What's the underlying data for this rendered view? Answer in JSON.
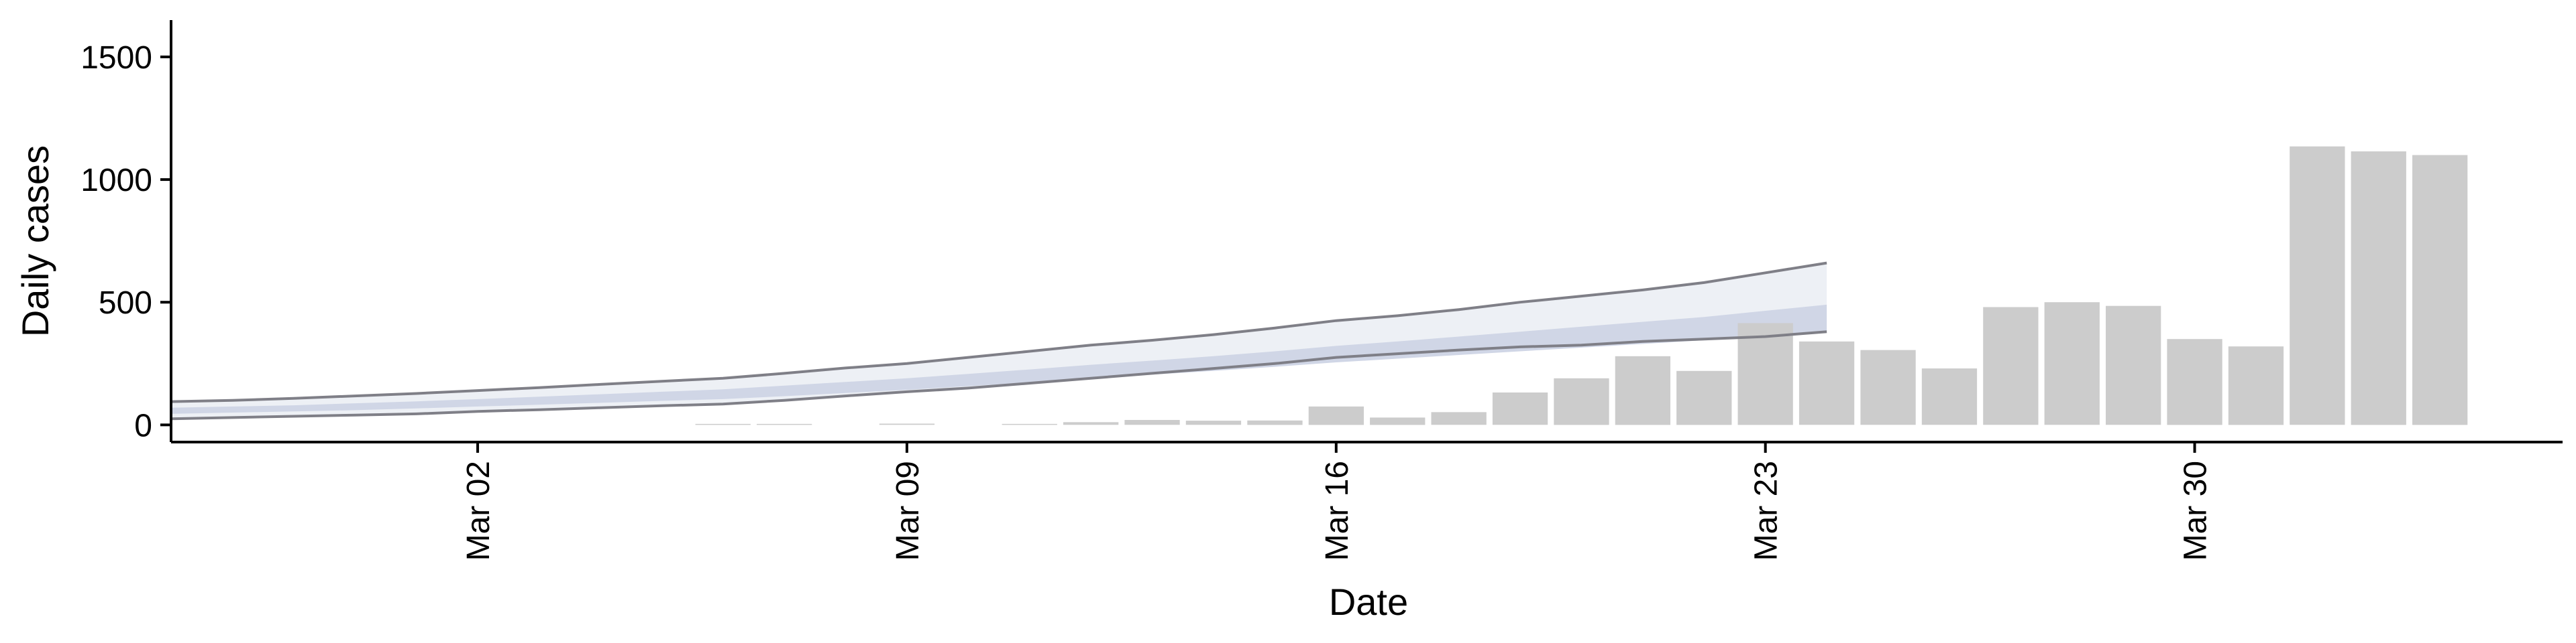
{
  "chart_data": {
    "type": "bar",
    "xlabel": "Date",
    "ylabel": "Daily cases",
    "ylim": [
      -70,
      1650
    ],
    "xlim": [
      "2020-02-26",
      "2020-04-05"
    ],
    "y_ticks": [
      0,
      500,
      1000,
      1500
    ],
    "x_ticks": [
      {
        "date": "2020-03-02",
        "label": "Mar 02"
      },
      {
        "date": "2020-03-09",
        "label": "Mar 09"
      },
      {
        "date": "2020-03-16",
        "label": "Mar 16"
      },
      {
        "date": "2020-03-23",
        "label": "Mar 23"
      },
      {
        "date": "2020-03-30",
        "label": "Mar 30"
      }
    ],
    "grid": false,
    "legend": "none",
    "bars": {
      "color": "#cccccc",
      "dates": [
        "2020-03-06",
        "2020-03-07",
        "2020-03-09",
        "2020-03-11",
        "2020-03-12",
        "2020-03-13",
        "2020-03-14",
        "2020-03-15",
        "2020-03-16",
        "2020-03-17",
        "2020-03-18",
        "2020-03-19",
        "2020-03-20",
        "2020-03-21",
        "2020-03-22",
        "2020-03-23",
        "2020-03-24",
        "2020-03-25",
        "2020-03-26",
        "2020-03-27",
        "2020-03-28",
        "2020-03-29",
        "2020-03-30",
        "2020-03-31",
        "2020-04-01",
        "2020-04-02",
        "2020-04-03"
      ],
      "values": [
        2,
        3,
        5,
        4,
        11,
        20,
        17,
        18,
        75,
        30,
        52,
        132,
        190,
        280,
        220,
        415,
        340,
        305,
        230,
        480,
        500,
        485,
        350,
        320,
        1135,
        1115,
        1100
      ]
    },
    "forecast": {
      "dates": [
        "2020-02-26",
        "2020-02-27",
        "2020-02-28",
        "2020-02-29",
        "2020-03-01",
        "2020-03-02",
        "2020-03-03",
        "2020-03-04",
        "2020-03-05",
        "2020-03-06",
        "2020-03-07",
        "2020-03-08",
        "2020-03-09",
        "2020-03-10",
        "2020-03-11",
        "2020-03-12",
        "2020-03-13",
        "2020-03-14",
        "2020-03-15",
        "2020-03-16",
        "2020-03-17",
        "2020-03-18",
        "2020-03-19",
        "2020-03-20",
        "2020-03-21",
        "2020-03-22",
        "2020-03-23",
        "2020-03-24"
      ],
      "outer_upper": [
        95,
        100,
        108,
        118,
        128,
        140,
        152,
        165,
        178,
        190,
        210,
        232,
        250,
        275,
        300,
        325,
        345,
        368,
        395,
        425,
        445,
        470,
        500,
        525,
        550,
        580,
        620,
        660
      ],
      "outer_lower": [
        25,
        30,
        35,
        40,
        45,
        55,
        62,
        70,
        78,
        85,
        100,
        118,
        135,
        150,
        170,
        190,
        210,
        230,
        250,
        275,
        290,
        305,
        318,
        325,
        340,
        350,
        360,
        380
      ],
      "inner_upper": [
        70,
        75,
        80,
        88,
        96,
        105,
        115,
        125,
        135,
        145,
        160,
        175,
        190,
        208,
        226,
        245,
        262,
        280,
        300,
        322,
        340,
        360,
        380,
        400,
        420,
        440,
        465,
        490
      ],
      "inner_lower": [
        45,
        50,
        55,
        60,
        67,
        75,
        82,
        90,
        98,
        105,
        117,
        130,
        143,
        158,
        173,
        190,
        205,
        220,
        237,
        255,
        270,
        285,
        300,
        315,
        330,
        345,
        360,
        380
      ],
      "band_colors": {
        "outer": "#edf0f5",
        "inner": "#d0d6e6",
        "outer_line": "#7f7f87"
      }
    }
  }
}
